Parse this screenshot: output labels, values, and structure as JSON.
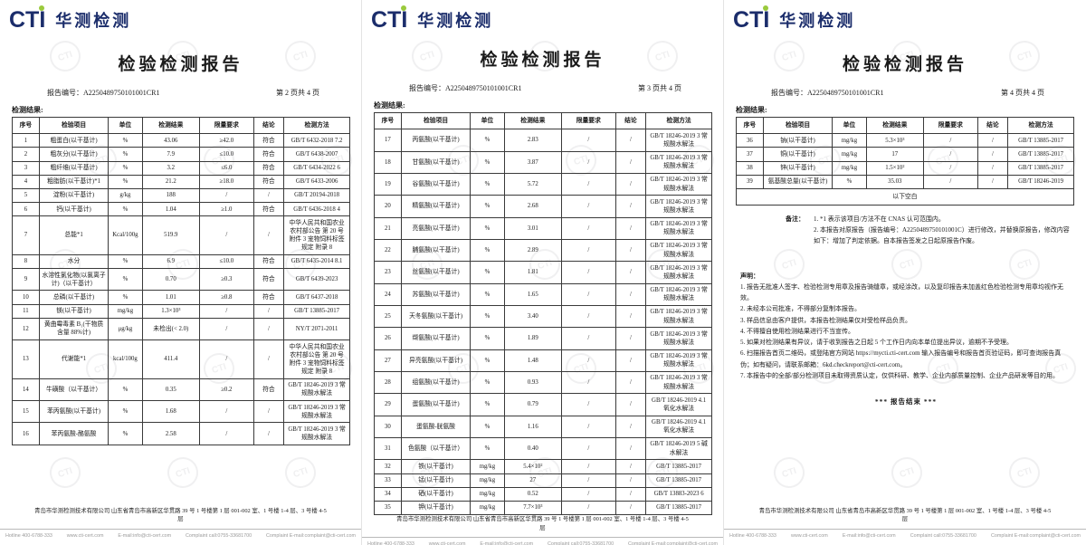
{
  "brand": {
    "cti": "CTI",
    "cn": "华测检测"
  },
  "table_headers": [
    "序号",
    "检验项目",
    "单位",
    "检测结果",
    "限量要求",
    "结论",
    "检测方法"
  ],
  "footer_bar": [
    "Hotline 400-6788-333",
    "www.cti-cert.com",
    "E-mail:info@cti-cert.com",
    "Complaint call:0755-33681700",
    "Complaint E-mail:complaint@cti-cert.com"
  ],
  "pages": [
    {
      "title": "检验检测报告",
      "report_no_label": "报告编号：",
      "report_no": "A2250489750101001CR1",
      "page_marker": "第 2 页共 4 页",
      "results_label": "检测结果:",
      "rows": [
        [
          "1",
          "粗蛋白(以干基计)",
          "%",
          "43.06",
          "≥42.0",
          "符合",
          "GB/T 6432-2018 7.2"
        ],
        [
          "2",
          "粗灰分(以干基计)",
          "%",
          "7.9",
          "≤10.0",
          "符合",
          "GB/T 6438-2007"
        ],
        [
          "3",
          "粗纤维(以干基计)",
          "%",
          "3.2",
          "≤6.0",
          "符合",
          "GB/T 6434-2022 6"
        ],
        [
          "4",
          "粗脂肪(以干基计)*1",
          "%",
          "21.2",
          "≥18.0",
          "符合",
          "GB/T 6433-2006"
        ],
        [
          "5",
          "淀粉(以干基计)",
          "g/kg",
          "188",
          "/",
          "/",
          "GB/T 20194-2018"
        ],
        [
          "6",
          "钙(以干基计)",
          "%",
          "1.04",
          "≥1.0",
          "符合",
          "GB/T 6436-2018 4"
        ],
        [
          "7",
          "总能*1",
          "Kcal/100g",
          "519.9",
          "/",
          "/",
          "中华人民共和国农业农村部公告 第 20 号 附件 3 宠物饲料标签规定 附录 8"
        ],
        [
          "8",
          "水分",
          "%",
          "6.9",
          "≤10.0",
          "符合",
          "GB/T 6435-2014 8.1"
        ],
        [
          "9",
          "水溶性氯化物(以氯离子计)（以干基计）",
          "%",
          "0.70",
          "≥0.3",
          "符合",
          "GB/T 6439-2023"
        ],
        [
          "10",
          "总磷(以干基计)",
          "%",
          "1.01",
          "≥0.8",
          "符合",
          "GB/T 6437-2018"
        ],
        [
          "11",
          "镁(以干基计)",
          "mg/kg",
          "1.3×10³",
          "/",
          "/",
          "GB/T 13885-2017"
        ],
        [
          "12",
          "黄曲霉毒素 B₁(干物质含量 88%计)",
          "μg/kg",
          "未检出(< 2.0)",
          "/",
          "/",
          "NY/T 2071-2011"
        ],
        [
          "13",
          "代谢能*1",
          "kcal/100g",
          "411.4",
          "/",
          "/",
          "中华人民共和国农业农村部公告 第 20 号 附件 3 宠物饲料标签规定 附录 8"
        ],
        [
          "14",
          "牛磺酸（以干基计）",
          "%",
          "0.35",
          "≥0.2",
          "符合",
          "GB/T 18246-2019 3 常规酸水解法"
        ],
        [
          "15",
          "苯丙氨酸(以干基计)",
          "%",
          "1.68",
          "/",
          "/",
          "GB/T 18246-2019 3 常规酸水解法"
        ],
        [
          "16",
          "苯丙氨酸-酪氨酸",
          "%",
          "2.58",
          "/",
          "/",
          "GB/T 18246-2019 3 常规酸水解法"
        ]
      ],
      "address": "青岛市华测检测技术有限公司 山东省青岛市高新区华贯路 39 号 1 号楼第 1 层 001-002 室、1 号楼 1-4 层、3 号楼 4-5 层"
    },
    {
      "title": "检验检测报告",
      "report_no_label": "报告编号：",
      "report_no": "A2250489750101001CR1",
      "page_marker": "第 3 页共 4 页",
      "results_label": "检测结果:",
      "rows": [
        [
          "17",
          "丙氨酸(以干基计)",
          "%",
          "2.83",
          "/",
          "/",
          "GB/T 18246-2019 3 常规酸水解法"
        ],
        [
          "18",
          "甘氨酸(以干基计)",
          "%",
          "3.87",
          "/",
          "/",
          "GB/T 18246-2019 3 常规酸水解法"
        ],
        [
          "19",
          "谷氨酸(以干基计)",
          "%",
          "5.72",
          "/",
          "/",
          "GB/T 18246-2019 3 常规酸水解法"
        ],
        [
          "20",
          "精氨酸(以干基计)",
          "%",
          "2.68",
          "/",
          "/",
          "GB/T 18246-2019 3 常规酸水解法"
        ],
        [
          "21",
          "亮氨酸(以干基计)",
          "%",
          "3.01",
          "/",
          "/",
          "GB/T 18246-2019 3 常规酸水解法"
        ],
        [
          "22",
          "脯氨酸(以干基计)",
          "%",
          "2.89",
          "/",
          "/",
          "GB/T 18246-2019 3 常规酸水解法"
        ],
        [
          "23",
          "丝氨酸(以干基计)",
          "%",
          "1.81",
          "/",
          "/",
          "GB/T 18246-2019 3 常规酸水解法"
        ],
        [
          "24",
          "苏氨酸(以干基计)",
          "%",
          "1.65",
          "/",
          "/",
          "GB/T 18246-2019 3 常规酸水解法"
        ],
        [
          "25",
          "天冬氨酸(以干基计)",
          "%",
          "3.40",
          "/",
          "/",
          "GB/T 18246-2019 3 常规酸水解法"
        ],
        [
          "26",
          "缬氨酸(以干基计)",
          "%",
          "1.89",
          "/",
          "/",
          "GB/T 18246-2019 3 常规酸水解法"
        ],
        [
          "27",
          "异亮氨酸(以干基计)",
          "%",
          "1.48",
          "/",
          "/",
          "GB/T 18246-2019 3 常规酸水解法"
        ],
        [
          "28",
          "组氨酸(以干基计)",
          "%",
          "0.93",
          "/",
          "/",
          "GB/T 18246-2019 3 常规酸水解法"
        ],
        [
          "29",
          "蛋氨酸(以干基计)",
          "%",
          "0.79",
          "/",
          "/",
          "GB/T 18246-2019 4.1  氧化水解法"
        ],
        [
          "30",
          "蛋氨酸-胱氨酸",
          "%",
          "1.16",
          "/",
          "/",
          "GB/T 18246-2019 4.1  氧化水解法"
        ],
        [
          "31",
          "色氨酸（以干基计）",
          "%",
          "0.40",
          "/",
          "/",
          "GB/T 18246-2019 5  碱水解法"
        ],
        [
          "32",
          "铁(以干基计)",
          "mg/kg",
          "5.4×10²",
          "/",
          "/",
          "GB/T 13885-2017"
        ],
        [
          "33",
          "锰(以干基计)",
          "mg/kg",
          "27",
          "/",
          "/",
          "GB/T 13885-2017"
        ],
        [
          "34",
          "硒(以干基计)",
          "mg/kg",
          "0.52",
          "/",
          "/",
          "GB/T 13883-2023 6"
        ],
        [
          "35",
          "钾(以干基计)",
          "mg/kg",
          "7.7×10³",
          "/",
          "/",
          "GB/T 13885-2017"
        ]
      ],
      "address": "青岛市华测检测技术有限公司 山东省青岛市高新区华贯路 39 号 1 号楼第 1 层 001-002 室、1 号楼 1-4 层、3 号楼 4-5 层"
    },
    {
      "title": "检验检测报告",
      "report_no_label": "报告编号：",
      "report_no": "A2250489750101001CR1",
      "page_marker": "第 4 页共 4 页",
      "results_label": "检测结果:",
      "rows": [
        [
          "36",
          "钠(以干基计)",
          "mg/kg",
          "5.3×10³",
          "/",
          "/",
          "GB/T 13885-2017"
        ],
        [
          "37",
          "铜(以干基计)",
          "mg/kg",
          "17",
          "/",
          "/",
          "GB/T 13885-2017"
        ],
        [
          "38",
          "锌(以干基计)",
          "mg/kg",
          "1.5×10²",
          "/",
          "/",
          "GB/T 13885-2017"
        ],
        [
          "39",
          "氨基酸总量(以干基计)",
          "%",
          "35.03",
          "/",
          "/",
          "GB/T 18246-2019"
        ]
      ],
      "blank_row": "以下空白",
      "notes": {
        "label": "备注：",
        "lines": [
          "1. *1 表示该项目/方法不在 CNAS 认可范围内。",
          "2. 本报告对原报告（报告编号：A2250489750101001C）进行修改，并替换原报告，修改内容如下：增加了判定依据。自本报告签发之日起原报告作废。"
        ]
      },
      "statement": {
        "label": "声明：",
        "lines": [
          "1. 报告无批准人签字、检验检测专用章及报告骑缝章，或经涂改，以及复印报告未加盖红色检验检测专用章均视作无效。",
          "2. 未经本公司批准，不得部分复制本报告。",
          "3. 样品信息由客户提供，本报告检测结果仅对受检样品负责。",
          "4. 不得擅自使用检测结果进行不当宣传。",
          "5. 如果对检测结果有异议，请于收到报告之日起 5 个工作日内向本单位提出异议，逾期不予受理。",
          "6. 扫描报告首页二维码，或登陆官方网站 https://mycti.cti-cert.com 输入报告编号和报告首页验证码，即可查询报告真伪；如有疑问，请联系邮箱：6kd.checkreport@cti-cert.com。",
          "7. 本报告中的全部/部分检测项目未取得资质认定，仅供科研、教学、企业内部质量控制、企业产品研发等目的用。"
        ]
      },
      "report_end": "*** 报告结束 ***",
      "address": "青岛市华测检测技术有限公司 山东省青岛市高新区华贯路 39 号 1 号楼第 1 层 001-002 室、1 号楼 1-4 层、3 号楼 4-5 层"
    }
  ]
}
